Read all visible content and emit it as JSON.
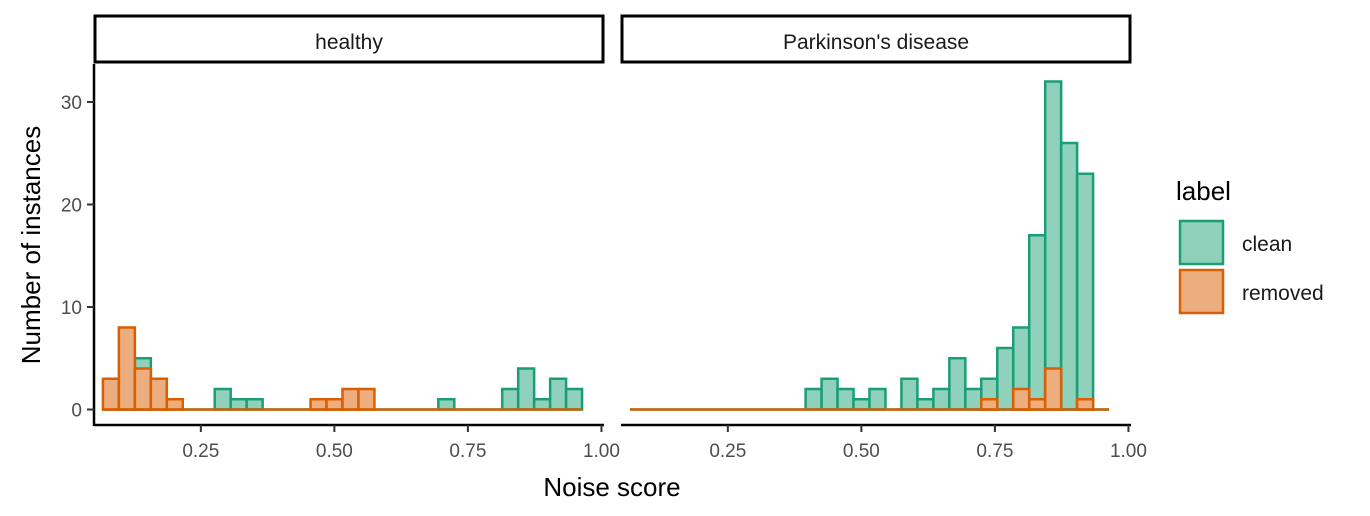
{
  "chart_data": {
    "type": "bar",
    "subtype": "faceted-histogram-overlaid",
    "xlabel": "Noise score",
    "ylabel": "Number of instances",
    "xlim": [
      0.05,
      1.0
    ],
    "ylim": [
      0,
      33.5
    ],
    "xticks": [
      0.25,
      0.5,
      0.75,
      1.0
    ],
    "xtick_labels": [
      "0.25",
      "0.50",
      "0.75",
      "1.00"
    ],
    "yticks": [
      0,
      10,
      20,
      30
    ],
    "ytick_labels": [
      "0",
      "10",
      "20",
      "30"
    ],
    "bins": {
      "start": 0.0667,
      "width": 0.0299,
      "count": 30
    },
    "grid": false,
    "legend": {
      "title": "label",
      "placement": "right",
      "entries": [
        {
          "name": "clean",
          "fill": "#8FD1BB",
          "stroke": "#1B9E77"
        },
        {
          "name": "removed",
          "fill": "#EDAE7F",
          "stroke": "#D95F02"
        }
      ]
    },
    "facets": [
      {
        "title": "healthy",
        "series": [
          {
            "name": "clean",
            "values": [
              0,
              1,
              5,
              0,
              0,
              0,
              0,
              2,
              1,
              1,
              0,
              0,
              0,
              0,
              0,
              0,
              0,
              0,
              0,
              0,
              0,
              1,
              0,
              0,
              0,
              2,
              4,
              1,
              3,
              2
            ]
          },
          {
            "name": "removed",
            "values": [
              3,
              8,
              4,
              3,
              1,
              0,
              0,
              0,
              0,
              0,
              0,
              0,
              0,
              1,
              1,
              2,
              2,
              0,
              0,
              0,
              0,
              0,
              0,
              0,
              0,
              0,
              0,
              0,
              0,
              0
            ]
          }
        ]
      },
      {
        "title": "Parkinson's disease",
        "series": [
          {
            "name": "clean",
            "values": [
              0,
              0,
              0,
              0,
              0,
              0,
              0,
              0,
              0,
              0,
              0,
              2,
              3,
              2,
              1,
              2,
              0,
              3,
              1,
              2,
              5,
              2,
              3,
              6,
              8,
              17,
              32,
              26,
              23,
              0
            ]
          },
          {
            "name": "removed",
            "values": [
              0,
              0,
              0,
              0,
              0,
              0,
              0,
              0,
              0,
              0,
              0,
              0,
              0,
              0,
              0,
              0,
              0,
              0,
              0,
              0,
              0,
              0,
              1,
              0,
              2,
              1,
              4,
              0,
              1,
              0
            ]
          }
        ]
      }
    ]
  }
}
